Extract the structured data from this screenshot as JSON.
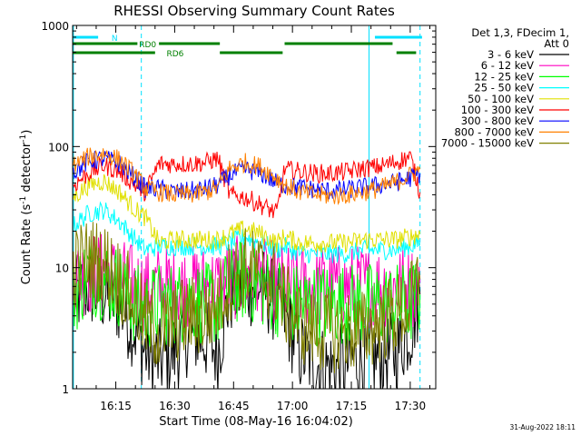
{
  "chart_data": {
    "type": "line",
    "title": "RHESSI Observing Summary Count Rates",
    "xlabel": "Start Time (08-May-16 16:04:02)",
    "ylabel_main": "Count Rate (s",
    "ylabel_sup1": "-1",
    "ylabel_mid": " detector",
    "ylabel_sup2": "-1",
    "ylabel_end": ")",
    "x_range_minutes": [
      4.0,
      43.5
    ],
    "x_ticks": [
      {
        "label": "16:15",
        "minute": 15
      },
      {
        "label": "16:30",
        "minute": 30
      },
      {
        "label": "16:45",
        "minute": 45
      },
      {
        "label": "17:00",
        "minute": 60
      },
      {
        "label": "17:15",
        "minute": 75
      },
      {
        "label": "17:30",
        "minute": 90
      }
    ],
    "y_scale": "log",
    "y_range": [
      1,
      1000
    ],
    "y_ticks": [
      {
        "label": "1",
        "value": 1
      },
      {
        "label": "10",
        "value": 10
      },
      {
        "label": "100",
        "value": 100
      },
      {
        "label": "1000",
        "value": 1000
      }
    ],
    "legend_header": [
      "Det 1,3, FDecim 1,",
      "Att 0"
    ],
    "legend_position": "right",
    "timestamp": "31-Aug-2022 18:11",
    "flags": [
      {
        "name": "N",
        "color": "#00e0ff",
        "segments_min": [
          [
            4.0,
            10.5
          ],
          [
            81.0,
            93.0
          ]
        ],
        "labelAt": 13.0
      },
      {
        "name": "RD0",
        "color": "#008000",
        "segments_min": [
          [
            4.0,
            20.5
          ],
          [
            26.0,
            41.5
          ],
          [
            58.0,
            85.5
          ]
        ],
        "labelAt": 20.0
      },
      {
        "name": "RD6",
        "color": "#008000",
        "segments_min": [
          [
            4.0,
            25.0
          ],
          [
            41.5,
            57.5
          ],
          [
            86.5,
            91.5
          ]
        ],
        "labelAt": 27.0
      }
    ],
    "vlines_min": [
      {
        "minute": 4.2,
        "style": "solid",
        "color": "#00e0ff"
      },
      {
        "minute": 21.5,
        "style": "dashed",
        "color": "#00e0ff"
      },
      {
        "minute": 79.5,
        "style": "solid",
        "color": "#00e0ff"
      },
      {
        "minute": 92.5,
        "style": "dashed",
        "color": "#00e0ff"
      }
    ],
    "series": [
      {
        "name": "3 - 6 keV",
        "color": "#000000",
        "points": [
          [
            4.2,
            5.5
          ],
          [
            8,
            7
          ],
          [
            12,
            6
          ],
          [
            16,
            5
          ],
          [
            20,
            3
          ],
          [
            22.5,
            2
          ],
          [
            26,
            1.7
          ],
          [
            30,
            2
          ],
          [
            34,
            3
          ],
          [
            38,
            2.5
          ],
          [
            41,
            2
          ],
          [
            44,
            6
          ],
          [
            48,
            7
          ],
          [
            52,
            7
          ],
          [
            56,
            5
          ],
          [
            58,
            4
          ],
          [
            62,
            2
          ],
          [
            66,
            1.6
          ],
          [
            70,
            1.5
          ],
          [
            74,
            1.6
          ],
          [
            78,
            1.8
          ],
          [
            82,
            1.8
          ],
          [
            86,
            2
          ],
          [
            90,
            3
          ],
          [
            92.5,
            6
          ]
        ]
      },
      {
        "name": "6 - 12 keV",
        "color": "#ff00c0",
        "points": [
          [
            4.2,
            8
          ],
          [
            8,
            9
          ],
          [
            12,
            9
          ],
          [
            16,
            8
          ],
          [
            20,
            7
          ],
          [
            22.5,
            6.5
          ],
          [
            26,
            7
          ],
          [
            30,
            7
          ],
          [
            34,
            7
          ],
          [
            38,
            7
          ],
          [
            41,
            7
          ],
          [
            44,
            8
          ],
          [
            48,
            8.5
          ],
          [
            52,
            8
          ],
          [
            56,
            7.5
          ],
          [
            58,
            7
          ],
          [
            62,
            7
          ],
          [
            66,
            7
          ],
          [
            70,
            7
          ],
          [
            74,
            7
          ],
          [
            78,
            7
          ],
          [
            82,
            7
          ],
          [
            86,
            7
          ],
          [
            90,
            7
          ],
          [
            92.5,
            7.5
          ]
        ]
      },
      {
        "name": "12 - 25 keV",
        "color": "#00ff00",
        "points": [
          [
            4.2,
            6
          ],
          [
            8,
            9
          ],
          [
            12,
            8
          ],
          [
            16,
            7
          ],
          [
            20,
            5
          ],
          [
            22.5,
            4.5
          ],
          [
            26,
            5
          ],
          [
            30,
            5
          ],
          [
            34,
            5.5
          ],
          [
            38,
            5
          ],
          [
            41,
            5
          ],
          [
            44,
            7
          ],
          [
            48,
            8
          ],
          [
            52,
            7
          ],
          [
            56,
            6
          ],
          [
            58,
            5
          ],
          [
            62,
            5
          ],
          [
            66,
            5
          ],
          [
            70,
            5
          ],
          [
            74,
            5
          ],
          [
            78,
            5
          ],
          [
            82,
            5
          ],
          [
            86,
            5
          ],
          [
            90,
            5
          ],
          [
            92.5,
            6
          ]
        ]
      },
      {
        "name": "25 - 50 keV",
        "color": "#00ffff",
        "points": [
          [
            4.2,
            22
          ],
          [
            8,
            28
          ],
          [
            12,
            30
          ],
          [
            16,
            24
          ],
          [
            20,
            17
          ],
          [
            22.5,
            14
          ],
          [
            26,
            15
          ],
          [
            30,
            15
          ],
          [
            34,
            15
          ],
          [
            38,
            15
          ],
          [
            41,
            15
          ],
          [
            44,
            16
          ],
          [
            48,
            18
          ],
          [
            52,
            16
          ],
          [
            56,
            14
          ],
          [
            58,
            15
          ],
          [
            62,
            13
          ],
          [
            66,
            13
          ],
          [
            70,
            13
          ],
          [
            74,
            13
          ],
          [
            78,
            14
          ],
          [
            82,
            14
          ],
          [
            86,
            14
          ],
          [
            90,
            15
          ],
          [
            92.5,
            16
          ]
        ]
      },
      {
        "name": "50 - 100 keV",
        "color": "#e0e000",
        "points": [
          [
            4.2,
            38
          ],
          [
            8,
            48
          ],
          [
            12,
            52
          ],
          [
            16,
            42
          ],
          [
            20,
            30
          ],
          [
            22.5,
            26
          ],
          [
            26,
            16
          ],
          [
            30,
            17
          ],
          [
            34,
            17
          ],
          [
            38,
            17
          ],
          [
            41,
            17
          ],
          [
            44,
            19
          ],
          [
            48,
            21
          ],
          [
            52,
            19
          ],
          [
            56,
            16
          ],
          [
            58,
            18
          ],
          [
            62,
            16
          ],
          [
            66,
            16
          ],
          [
            70,
            16
          ],
          [
            74,
            16
          ],
          [
            78,
            17
          ],
          [
            82,
            17
          ],
          [
            86,
            17
          ],
          [
            90,
            18
          ],
          [
            92.5,
            19
          ]
        ]
      },
      {
        "name": "100 - 300 keV",
        "color": "#ff0000",
        "points": [
          [
            4.2,
            48
          ],
          [
            8,
            60
          ],
          [
            12,
            70
          ],
          [
            16,
            62
          ],
          [
            20,
            48
          ],
          [
            22.5,
            42
          ],
          [
            26,
            72
          ],
          [
            30,
            72
          ],
          [
            34,
            72
          ],
          [
            38,
            74
          ],
          [
            41,
            80
          ],
          [
            44,
            40
          ],
          [
            48,
            38
          ],
          [
            52,
            33
          ],
          [
            56,
            28
          ],
          [
            58,
            65
          ],
          [
            62,
            62
          ],
          [
            66,
            60
          ],
          [
            70,
            60
          ],
          [
            74,
            62
          ],
          [
            78,
            66
          ],
          [
            82,
            68
          ],
          [
            86,
            74
          ],
          [
            90,
            82
          ],
          [
            92.5,
            42
          ]
        ]
      },
      {
        "name": "300 - 800 keV",
        "color": "#0000ff",
        "points": [
          [
            4.2,
            62
          ],
          [
            8,
            75
          ],
          [
            12,
            80
          ],
          [
            16,
            72
          ],
          [
            20,
            55
          ],
          [
            22.5,
            45
          ],
          [
            26,
            45
          ],
          [
            30,
            42
          ],
          [
            34,
            43
          ],
          [
            38,
            45
          ],
          [
            41,
            48
          ],
          [
            44,
            58
          ],
          [
            48,
            65
          ],
          [
            52,
            60
          ],
          [
            56,
            50
          ],
          [
            58,
            48
          ],
          [
            62,
            46
          ],
          [
            66,
            44
          ],
          [
            70,
            43
          ],
          [
            74,
            44
          ],
          [
            78,
            46
          ],
          [
            82,
            48
          ],
          [
            86,
            50
          ],
          [
            90,
            55
          ],
          [
            92.5,
            60
          ]
        ]
      },
      {
        "name": "800 - 7000 keV",
        "color": "#ff8000",
        "points": [
          [
            4.2,
            70
          ],
          [
            8,
            82
          ],
          [
            12,
            88
          ],
          [
            16,
            78
          ],
          [
            20,
            58
          ],
          [
            22.5,
            45
          ],
          [
            26,
            42
          ],
          [
            30,
            40
          ],
          [
            34,
            40
          ],
          [
            38,
            42
          ],
          [
            41,
            46
          ],
          [
            44,
            66
          ],
          [
            48,
            74
          ],
          [
            52,
            68
          ],
          [
            56,
            55
          ],
          [
            58,
            48
          ],
          [
            62,
            42
          ],
          [
            66,
            40
          ],
          [
            70,
            39
          ],
          [
            74,
            40
          ],
          [
            78,
            42
          ],
          [
            82,
            45
          ],
          [
            86,
            50
          ],
          [
            90,
            58
          ],
          [
            92.5,
            65
          ]
        ]
      },
      {
        "name": "7000 - 15000 keV",
        "color": "#808000",
        "points": [
          [
            4.2,
            10
          ],
          [
            8,
            12
          ],
          [
            12,
            11
          ],
          [
            16,
            8
          ],
          [
            20,
            5
          ],
          [
            22.5,
            3.5
          ],
          [
            26,
            3
          ],
          [
            30,
            3.5
          ],
          [
            34,
            4
          ],
          [
            38,
            4
          ],
          [
            41,
            5
          ],
          [
            44,
            8
          ],
          [
            48,
            10
          ],
          [
            52,
            9
          ],
          [
            56,
            7
          ],
          [
            58,
            5
          ],
          [
            62,
            3.5
          ],
          [
            66,
            3
          ],
          [
            70,
            3
          ],
          [
            74,
            3
          ],
          [
            78,
            3
          ],
          [
            82,
            3.5
          ],
          [
            86,
            4
          ],
          [
            90,
            5
          ],
          [
            92.5,
            8
          ]
        ]
      }
    ]
  }
}
